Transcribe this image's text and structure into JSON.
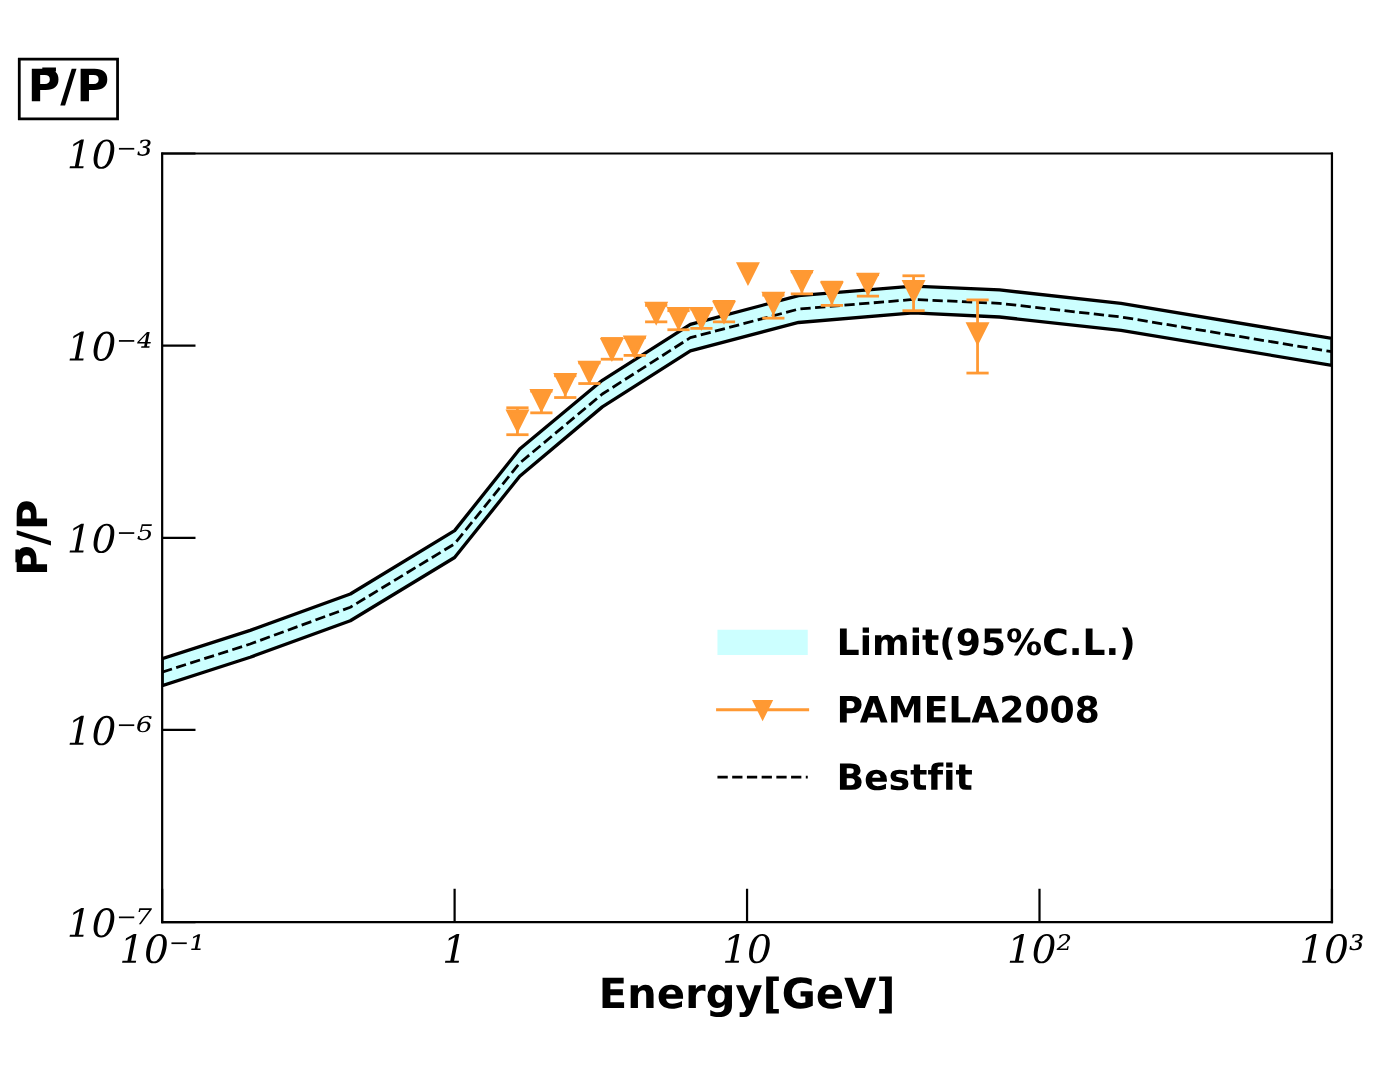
{
  "chart_data": {
    "type": "line",
    "title": "P̄/P",
    "xlabel": "Energy[GeV]",
    "ylabel": "P̄/P",
    "log": "xy",
    "xlim": [
      0.1,
      1000
    ],
    "ylim": [
      1e-07,
      0.001
    ],
    "xticks": [
      {
        "value": 0.1,
        "label": "10⁻¹"
      },
      1,
      10,
      {
        "value": 100,
        "label": "10²"
      },
      {
        "value": 1000,
        "label": "10³"
      }
    ],
    "yticks": [
      {
        "value": 1e-07,
        "label": "10⁻⁷"
      },
      {
        "value": 1e-06,
        "label": "10⁻⁶"
      },
      {
        "value": 1e-05,
        "label": "10⁻⁵"
      },
      {
        "value": 0.0001,
        "label": "10⁻⁴"
      },
      {
        "value": 0.001,
        "label": "10⁻³"
      }
    ],
    "grid": false,
    "legend": "bottom right",
    "series": [
      {
        "type": "area",
        "name": "Limit(95%C.L.)",
        "color": "#ccffff"
      },
      {
        "type": "scatter",
        "name": "PAMELA2008",
        "color": "#ff9933",
        "marker": "triangle",
        "x": [
          1.64,
          1.98,
          2.39,
          2.89,
          3.45,
          4.13,
          4.89,
          5.83,
          6.98,
          8.34,
          10.07,
          12.3,
          15.4,
          19.5,
          25.9,
          37.1,
          61.4
        ],
        "values": [
          4.07e-05,
          5.2e-05,
          6.3e-05,
          7.3e-05,
          9.6e-05,
          9.9e-05,
          0.000148,
          0.000139,
          0.000139,
          0.00015,
          0.000238,
          0.000167,
          0.000217,
          0.000189,
          0.00021,
          0.000192,
          0.000116
        ],
        "errors": [
          [
            3.44e-05,
            4.75e-05
          ],
          [
            4.47e-05,
            5.8e-05
          ],
          [
            5.37e-05,
            6.97e-05
          ],
          [
            6.35e-05,
            8.13e-05
          ],
          [
            8.5e-05,
            0.000109
          ],
          [
            8.9e-05,
            0.00011
          ],
          [
            0.000133,
            0.000162
          ],
          [
            0.000121,
            0.000152
          ],
          [
            0.000123,
            0.000155
          ],
          [
            0.000133,
            0.00017
          ],
          null,
          [
            0.000139,
            0.000183
          ],
          [
            0.000186,
            0.000242
          ],
          [
            0.000162,
            0.000214
          ],
          [
            0.000181,
            0.000234
          ],
          [
            0.000152,
            0.000231
          ],
          [
            7.2e-05,
            0.000173
          ]
        ]
      },
      {
        "name": "Bestfit",
        "color": "#000000",
        "line_style": "dashed",
        "x": [
          0.1,
          0.2,
          0.44,
          1,
          1.67,
          3.2,
          6.4,
          15,
          37,
          73,
          190,
          1000
        ],
        "values": [
          2e-06,
          2.8e-06,
          4.35e-06,
          9.3e-06,
          2.45e-05,
          5.6e-05,
          0.00011,
          0.000155,
          0.000174,
          0.000166,
          0.000141,
          9.3e-05
        ],
        "lower": [
          1.7e-06,
          2.39e-06,
          3.7e-06,
          7.9e-06,
          2.09e-05,
          4.8e-05,
          9.4e-05,
          0.000132,
          0.000148,
          0.000141,
          0.00012,
          7.9e-05
        ],
        "upper": [
          2.35e-06,
          3.3e-06,
          5.1e-06,
          1.09e-05,
          2.9e-05,
          6.6e-05,
          0.000129,
          0.000182,
          0.000204,
          0.000195,
          0.000166,
          0.000109
        ]
      }
    ]
  }
}
